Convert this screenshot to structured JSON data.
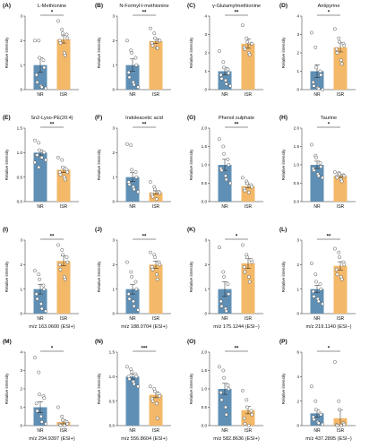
{
  "colors": {
    "NR": "#5f8fb4",
    "ISR": "#f3b868",
    "axis": "#222222"
  },
  "chart_data": [
    {
      "type": "bar",
      "panel": "(A)",
      "title": "L-Methionine",
      "ylabel": "Relative intensity",
      "categories": [
        "NR",
        "ISR"
      ],
      "values": [
        1.0,
        2.05
      ],
      "errors": [
        0.3,
        0.15
      ],
      "ylim": [
        0,
        3
      ],
      "yticks": [
        0,
        1,
        2,
        3
      ],
      "significance": "*",
      "points": [
        [
          2.0,
          2.0,
          1.3,
          1.2,
          0.9,
          0.6,
          0.3,
          0.15,
          0.1,
          0.05
        ],
        [
          2.8,
          2.45,
          2.3,
          2.25,
          2.1,
          2.0,
          1.9,
          1.5,
          1.4
        ]
      ]
    },
    {
      "type": "bar",
      "panel": "(B)",
      "title": "N-Formyl-l-methionine",
      "ylabel": "Relative intensity",
      "categories": [
        "NR",
        "ISR"
      ],
      "values": [
        1.0,
        1.98
      ],
      "errors": [
        0.25,
        0.1
      ],
      "ylim": [
        0,
        3
      ],
      "yticks": [
        0,
        1,
        2,
        3
      ],
      "significance": "**",
      "points": [
        [
          2.0,
          1.6,
          1.5,
          1.3,
          1.0,
          0.7,
          0.5,
          0.3,
          0.2,
          0.1
        ],
        [
          2.5,
          2.3,
          2.1,
          2.0,
          2.0,
          1.9,
          1.8,
          1.7,
          1.7
        ]
      ]
    },
    {
      "type": "bar",
      "panel": "(C)",
      "title": "γ-Glutamylmethionine",
      "ylabel": "Relative intensity",
      "categories": [
        "NR",
        "ISR"
      ],
      "values": [
        1.0,
        2.5
      ],
      "errors": [
        0.2,
        0.25
      ],
      "ylim": [
        0,
        4
      ],
      "yticks": [
        0,
        1,
        2,
        3,
        4
      ],
      "significance": "**",
      "points": [
        [
          2.1,
          1.5,
          1.2,
          1.1,
          0.9,
          0.8,
          0.6,
          0.5,
          0.3,
          0.2
        ],
        [
          3.5,
          2.8,
          2.6,
          2.5,
          2.5,
          2.3,
          2.2,
          2.0,
          1.9
        ]
      ]
    },
    {
      "type": "bar",
      "panel": "(D)",
      "title": "Antipyrine",
      "ylabel": "Relative intensity",
      "categories": [
        "NR",
        "ISR"
      ],
      "values": [
        1.0,
        2.3
      ],
      "errors": [
        0.35,
        0.25
      ],
      "ylim": [
        0,
        4
      ],
      "yticks": [
        0,
        1,
        2,
        3,
        4
      ],
      "significance": "*",
      "points": [
        [
          3.1,
          2.3,
          1.2,
          1.0,
          0.8,
          0.4,
          0.2,
          0.1,
          0.05,
          0.0
        ],
        [
          3.3,
          2.8,
          2.6,
          2.5,
          2.4,
          2.2,
          2.0,
          1.6,
          1.4
        ]
      ]
    },
    {
      "type": "bar",
      "panel": "(E)",
      "title": "Sn2-Lyso-PE(20:4)",
      "ylabel": "Relative intensity",
      "categories": [
        "NR",
        "ISR"
      ],
      "values": [
        1.0,
        0.65
      ],
      "errors": [
        0.05,
        0.06
      ],
      "ylim": [
        0,
        1.5
      ],
      "yticks": [
        0,
        0.5,
        1.0,
        1.5
      ],
      "significance": "**",
      "points": [
        [
          1.25,
          1.2,
          1.05,
          1.0,
          1.0,
          0.95,
          0.95,
          0.9,
          0.9,
          0.85,
          0.8,
          0.7
        ],
        [
          0.9,
          0.85,
          0.7,
          0.65,
          0.6,
          0.6,
          0.55,
          0.5,
          0.45
        ]
      ]
    },
    {
      "type": "bar",
      "panel": "(F)",
      "title": "Indoleacetic acid",
      "ylabel": "Relative intensity",
      "categories": [
        "NR",
        "ISR"
      ],
      "values": [
        1.0,
        0.37
      ],
      "errors": [
        0.18,
        0.07
      ],
      "ylim": [
        0,
        3
      ],
      "yticks": [
        0,
        1,
        2,
        3
      ],
      "significance": "**",
      "points": [
        [
          2.35,
          2.3,
          1.3,
          1.2,
          1.0,
          0.8,
          0.7,
          0.6,
          0.5,
          0.4
        ],
        [
          0.8,
          0.6,
          0.5,
          0.4,
          0.35,
          0.3,
          0.2,
          0.1
        ]
      ]
    },
    {
      "type": "bar",
      "panel": "(G)",
      "title": "Phenol sulphate",
      "ylabel": "Relative intensity",
      "categories": [
        "NR",
        "ISR"
      ],
      "values": [
        1.0,
        0.42
      ],
      "errors": [
        0.15,
        0.05
      ],
      "ylim": [
        0,
        2
      ],
      "yticks": [
        0,
        0.5,
        1.0,
        1.5,
        2.0
      ],
      "significance": "**",
      "points": [
        [
          1.7,
          1.5,
          1.3,
          1.15,
          1.0,
          0.9,
          0.85,
          0.7,
          0.6,
          0.5
        ],
        [
          0.65,
          0.55,
          0.5,
          0.45,
          0.4,
          0.35,
          0.3,
          0.25
        ]
      ]
    },
    {
      "type": "bar",
      "panel": "(H)",
      "title": "Taurine",
      "ylabel": "Relative intensity",
      "categories": [
        "NR",
        "ISR"
      ],
      "values": [
        1.0,
        0.7
      ],
      "errors": [
        0.1,
        0.04
      ],
      "ylim": [
        0,
        2
      ],
      "yticks": [
        0,
        0.5,
        1.0,
        1.5,
        2.0
      ],
      "significance": "*",
      "points": [
        [
          1.55,
          1.25,
          1.2,
          1.05,
          0.95,
          0.9,
          0.85,
          0.75,
          0.7,
          0.65
        ],
        [
          0.8,
          0.78,
          0.75,
          0.72,
          0.7,
          0.68,
          0.65,
          0.6,
          0.55
        ]
      ]
    },
    {
      "type": "bar",
      "panel": "(I)",
      "title": "m/z 163.0600 (ESI+)",
      "ylabel": "Relative intensity",
      "categories": [
        "NR",
        "ISR"
      ],
      "values": [
        1.0,
        2.15
      ],
      "errors": [
        0.2,
        0.2
      ],
      "ylim": [
        0,
        3
      ],
      "yticks": [
        0,
        1,
        2,
        3
      ],
      "significance": "**",
      "points": [
        [
          1.75,
          1.6,
          1.4,
          1.15,
          1.0,
          0.8,
          0.6,
          0.4,
          0.2,
          0.1
        ],
        [
          2.8,
          2.6,
          2.4,
          2.3,
          2.1,
          2.0,
          1.8,
          1.5,
          1.4
        ]
      ]
    },
    {
      "type": "bar",
      "panel": "(J)",
      "title": "m/z 188.0704 (ESI+)",
      "ylabel": "Relative intensity",
      "categories": [
        "NR",
        "ISR"
      ],
      "values": [
        1.0,
        2.0
      ],
      "errors": [
        0.2,
        0.15
      ],
      "ylim": [
        0,
        3
      ],
      "yticks": [
        0,
        1,
        2,
        3
      ],
      "significance": "**",
      "points": [
        [
          2.1,
          1.7,
          1.5,
          1.3,
          1.0,
          0.8,
          0.6,
          0.5,
          0.3,
          0.15
        ],
        [
          2.5,
          2.4,
          2.3,
          2.1,
          2.0,
          1.9,
          1.8,
          1.6,
          1.4
        ]
      ]
    },
    {
      "type": "bar",
      "panel": "(K)",
      "title": "m/z 175.1244 (ESI−)",
      "ylabel": "Relative intensity",
      "categories": [
        "NR",
        "ISR"
      ],
      "values": [
        1.0,
        2.05
      ],
      "errors": [
        0.3,
        0.2
      ],
      "ylim": [
        0,
        3
      ],
      "yticks": [
        0,
        1,
        2,
        3
      ],
      "significance": "*",
      "points": [
        [
          2.7,
          1.7,
          1.5,
          1.2,
          0.8,
          0.5,
          0.3,
          0.2,
          0.1
        ],
        [
          2.8,
          2.4,
          2.3,
          2.2,
          2.1,
          1.9,
          1.7,
          1.5,
          1.3
        ]
      ]
    },
    {
      "type": "bar",
      "panel": "(L)",
      "title": "m/z 219.1140 (ESI−)",
      "ylabel": "Relative intensity",
      "categories": [
        "NR",
        "ISR"
      ],
      "values": [
        1.0,
        1.95
      ],
      "errors": [
        0.15,
        0.17
      ],
      "ylim": [
        0,
        3
      ],
      "yticks": [
        0,
        1,
        2,
        3
      ],
      "significance": "**",
      "points": [
        [
          2.05,
          1.6,
          1.3,
          1.2,
          1.0,
          0.9,
          0.7,
          0.6,
          0.5,
          0.4
        ],
        [
          2.65,
          2.5,
          2.3,
          2.1,
          2.0,
          1.8,
          1.6,
          1.5,
          1.4
        ]
      ]
    },
    {
      "type": "bar",
      "panel": "(M)",
      "title": "m/z 294.9397 (ESI+)",
      "ylabel": "Relative intensity",
      "categories": [
        "NR",
        "ISR"
      ],
      "values": [
        1.0,
        0.2
      ],
      "errors": [
        0.3,
        0.1
      ],
      "ylim": [
        0,
        4
      ],
      "yticks": [
        0,
        1,
        2,
        3,
        4
      ],
      "significance": "*",
      "points": [
        [
          3.7,
          2.9,
          1.7,
          1.6,
          1.5,
          1.2,
          0.8,
          0.5,
          0.2,
          0.1
        ],
        [
          1.0,
          0.5,
          0.3,
          0.2,
          0.1,
          0.05,
          0.0,
          0.0
        ]
      ]
    },
    {
      "type": "bar",
      "panel": "(N)",
      "title": "m/z 556.8604 (ESI+)",
      "ylabel": "Relative intensity",
      "categories": [
        "NR",
        "ISR"
      ],
      "values": [
        1.0,
        0.63
      ],
      "errors": [
        0.05,
        0.06
      ],
      "ylim": [
        0,
        1.5
      ],
      "yticks": [
        0,
        0.5,
        1.0,
        1.5
      ],
      "significance": "***",
      "points": [
        [
          1.2,
          1.15,
          1.1,
          1.05,
          1.0,
          1.0,
          0.95,
          0.9,
          0.85,
          0.8
        ],
        [
          0.8,
          0.75,
          0.7,
          0.65,
          0.6,
          0.55,
          0.5,
          0.45,
          0.15
        ]
      ]
    },
    {
      "type": "bar",
      "panel": "(O)",
      "title": "m/z 582.8636 (ESI+)",
      "ylabel": "Relative intensity",
      "categories": [
        "NR",
        "ISR"
      ],
      "values": [
        1.0,
        0.42
      ],
      "errors": [
        0.15,
        0.1
      ],
      "ylim": [
        0,
        2
      ],
      "yticks": [
        0,
        0.5,
        1.0,
        1.5,
        2.0
      ],
      "significance": "**",
      "points": [
        [
          1.6,
          1.5,
          1.3,
          1.1,
          1.0,
          0.9,
          0.7,
          0.5,
          0.3
        ],
        [
          0.95,
          0.7,
          0.5,
          0.4,
          0.3,
          0.2,
          0.05,
          0.0
        ]
      ]
    },
    {
      "type": "bar",
      "panel": "(P)",
      "title": "m/z 437.2895 (ESI−)",
      "ylabel": "Relative intensity",
      "categories": [
        "NR",
        "ISR"
      ],
      "values": [
        1.0,
        0.6
      ],
      "errors": [
        0.3,
        0.7
      ],
      "ylim": [
        0,
        6
      ],
      "yticks": [
        0,
        2,
        4,
        6
      ],
      "significance": "*",
      "points": [
        [
          3.2,
          2.0,
          1.3,
          1.0,
          0.9,
          0.7,
          0.5,
          0.3,
          0.2,
          0.1
        ],
        [
          5.2,
          2.0,
          1.3,
          0.2,
          0.1,
          0.05,
          0.0,
          0.0
        ]
      ]
    }
  ]
}
